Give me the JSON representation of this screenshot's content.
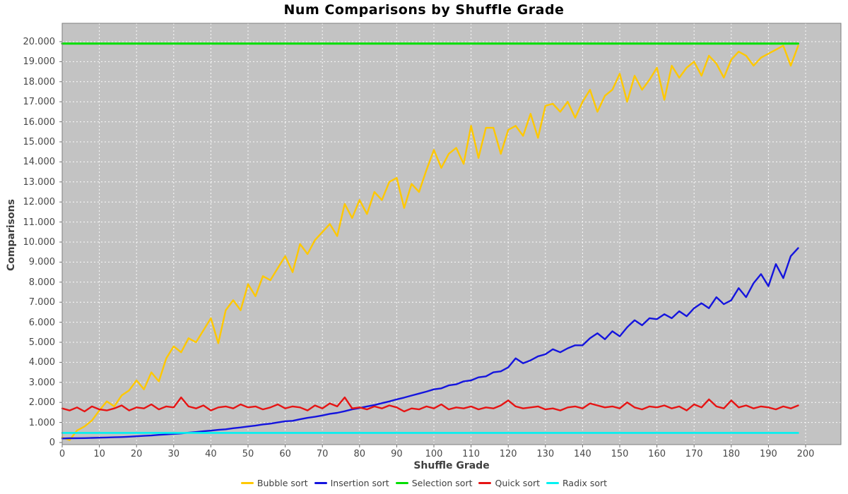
{
  "chart_data": {
    "type": "line",
    "title": "Num Comparisons by Shuffle Grade",
    "xlabel": "Shuffle Grade",
    "ylabel": "Comparisons",
    "xlim": [
      0,
      209.5
    ],
    "ylim": [
      0,
      20900
    ],
    "grid": true,
    "legend_position": "bottom",
    "plot_bg_color": "#C3C3C3",
    "grid_color": "#FFFFFF",
    "border_color": "#7D7D7D",
    "tick_color": "#6E6E6E",
    "x_tick_values": [
      0,
      10,
      20,
      30,
      40,
      50,
      60,
      70,
      80,
      90,
      100,
      110,
      120,
      130,
      140,
      150,
      160,
      170,
      180,
      190,
      200
    ],
    "x_tick_labels": [
      "0",
      "10",
      "20",
      "30",
      "40",
      "50",
      "60",
      "70",
      "80",
      "90",
      "100",
      "110",
      "120",
      "130",
      "140",
      "150",
      "160",
      "170",
      "180",
      "190",
      "200"
    ],
    "y_tick_values": [
      0,
      1000,
      2000,
      3000,
      4000,
      5000,
      6000,
      7000,
      8000,
      9000,
      10000,
      11000,
      12000,
      13000,
      14000,
      15000,
      16000,
      17000,
      18000,
      19000,
      20000
    ],
    "y_tick_labels": [
      "0",
      "1.000",
      "2.000",
      "3.000",
      "4.000",
      "5.000",
      "6.000",
      "7.000",
      "8.000",
      "9.000",
      "10.000",
      "11.000",
      "12.000",
      "13.000",
      "14.000",
      "15.000",
      "16.000",
      "17.000",
      "18.000",
      "19.000",
      "20.000"
    ],
    "x_start": 0,
    "x_step": 2,
    "points_per_series": 100,
    "series": [
      {
        "name": "Bubble sort",
        "color": "#FFC800",
        "width": 2.4,
        "values": [
          250,
          120,
          600,
          800,
          1100,
          1600,
          2050,
          1800,
          2350,
          2600,
          3100,
          2650,
          3500,
          3050,
          4200,
          4800,
          4500,
          5200,
          5000,
          5600,
          6200,
          4950,
          6600,
          7100,
          6600,
          7900,
          7300,
          8300,
          8100,
          8700,
          9300,
          8500,
          9900,
          9400,
          10100,
          10500,
          10900,
          10300,
          11900,
          11200,
          12100,
          11400,
          12500,
          12100,
          13000,
          13200,
          11700,
          12900,
          12500,
          13600,
          14600,
          13700,
          14400,
          14700,
          13900,
          15800,
          14200,
          15700,
          15700,
          14400,
          15600,
          15800,
          15300,
          16400,
          15200,
          16800,
          16900,
          16500,
          17000,
          16200,
          17000,
          17600,
          16500,
          17300,
          17600,
          18400,
          17000,
          18300,
          17600,
          18100,
          18700,
          17100,
          18800,
          18200,
          18700,
          19000,
          18300,
          19300,
          18900,
          18200,
          19100,
          19500,
          19300,
          18800,
          19200,
          19400,
          19600,
          19800,
          18800,
          19800
        ]
      },
      {
        "name": "Insertion sort",
        "color": "#1414DE",
        "width": 2.4,
        "values": [
          200,
          210,
          215,
          220,
          230,
          240,
          250,
          260,
          270,
          290,
          310,
          330,
          350,
          380,
          400,
          430,
          450,
          490,
          520,
          560,
          590,
          630,
          660,
          710,
          750,
          800,
          840,
          900,
          940,
          1000,
          1060,
          1080,
          1160,
          1230,
          1280,
          1350,
          1430,
          1480,
          1560,
          1650,
          1720,
          1800,
          1870,
          1960,
          2050,
          2150,
          2240,
          2340,
          2440,
          2540,
          2650,
          2700,
          2850,
          2900,
          3050,
          3100,
          3250,
          3300,
          3500,
          3550,
          3750,
          4200,
          3950,
          4100,
          4300,
          4400,
          4650,
          4500,
          4700,
          4850,
          4850,
          5200,
          5450,
          5150,
          5550,
          5300,
          5750,
          6100,
          5850,
          6200,
          6150,
          6400,
          6200,
          6550,
          6300,
          6700,
          6950,
          6700,
          7250,
          6900,
          7100,
          7700,
          7250,
          7950,
          8400,
          7800,
          8900,
          8200,
          9300,
          9700
        ]
      },
      {
        "name": "Selection sort",
        "color": "#00DF00",
        "width": 3,
        "constant": 19900
      },
      {
        "name": "Quick sort",
        "color": "#E61414",
        "width": 2.4,
        "values": [
          1700,
          1600,
          1750,
          1550,
          1800,
          1650,
          1600,
          1700,
          1850,
          1600,
          1750,
          1700,
          1900,
          1650,
          1800,
          1750,
          2250,
          1800,
          1700,
          1850,
          1600,
          1750,
          1800,
          1700,
          1900,
          1750,
          1800,
          1650,
          1750,
          1900,
          1700,
          1800,
          1750,
          1600,
          1850,
          1700,
          1950,
          1800,
          2250,
          1700,
          1750,
          1650,
          1800,
          1700,
          1850,
          1750,
          1550,
          1700,
          1650,
          1800,
          1700,
          1900,
          1650,
          1750,
          1700,
          1800,
          1650,
          1750,
          1700,
          1850,
          2100,
          1800,
          1700,
          1750,
          1800,
          1650,
          1700,
          1600,
          1750,
          1800,
          1700,
          1950,
          1850,
          1750,
          1800,
          1700,
          2000,
          1750,
          1650,
          1800,
          1750,
          1850,
          1700,
          1800,
          1600,
          1900,
          1750,
          2150,
          1800,
          1700,
          2100,
          1750,
          1850,
          1700,
          1800,
          1750,
          1650,
          1800,
          1700,
          1850
        ]
      },
      {
        "name": "Radix sort",
        "color": "#00F2F2",
        "width": 2.6,
        "constant": 480
      }
    ]
  }
}
